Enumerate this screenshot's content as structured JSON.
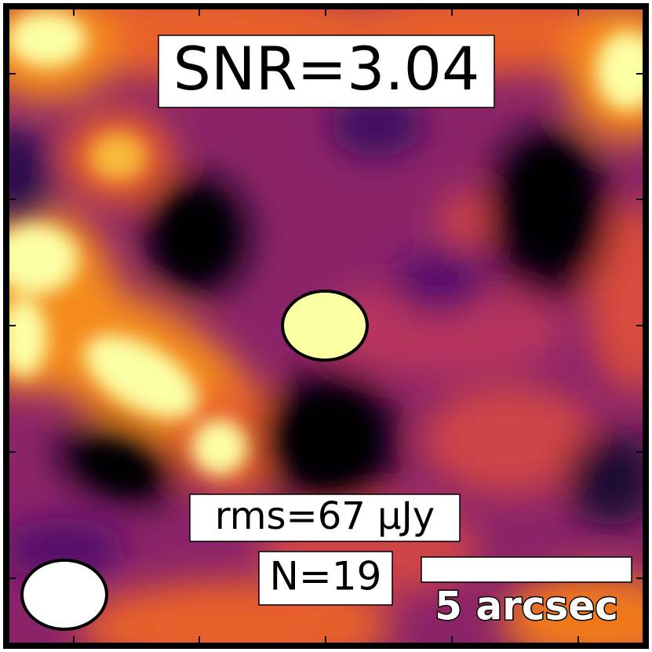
{
  "image": {
    "snr_label": "SNR=3.04",
    "rms_label": "rms=67 μJy",
    "count_label": "N=19",
    "scale_bar_label": "5 arcsec"
  }
}
